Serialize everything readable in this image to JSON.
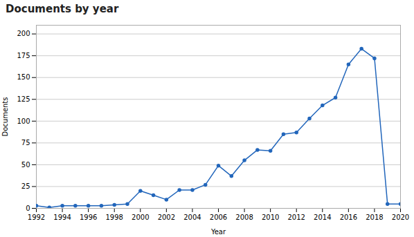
{
  "chart_data": {
    "type": "line",
    "title": "Documents by year",
    "xlabel": "Year",
    "ylabel": "Documents",
    "x": [
      1992,
      1993,
      1994,
      1995,
      1996,
      1997,
      1998,
      1999,
      2000,
      2001,
      2002,
      2003,
      2004,
      2005,
      2006,
      2007,
      2008,
      2009,
      2010,
      2011,
      2012,
      2013,
      2014,
      2015,
      2016,
      2017,
      2018,
      2019,
      2020
    ],
    "values": [
      3,
      1,
      3,
      3,
      3,
      3,
      4,
      5,
      20,
      15,
      10,
      21,
      21,
      27,
      49,
      37,
      55,
      67,
      66,
      85,
      87,
      103,
      118,
      127,
      165,
      183,
      172,
      5,
      5
    ],
    "color": "#2266bb",
    "marker": "circle",
    "xlim": [
      1992,
      2020
    ],
    "xticks": [
      1992,
      1994,
      1996,
      1998,
      2000,
      2002,
      2004,
      2006,
      2008,
      2010,
      2012,
      2014,
      2016,
      2018,
      2020
    ],
    "ylim": [
      0,
      210
    ],
    "yticks": [
      0,
      25,
      50,
      75,
      100,
      125,
      150,
      175,
      200
    ],
    "grid": true
  }
}
